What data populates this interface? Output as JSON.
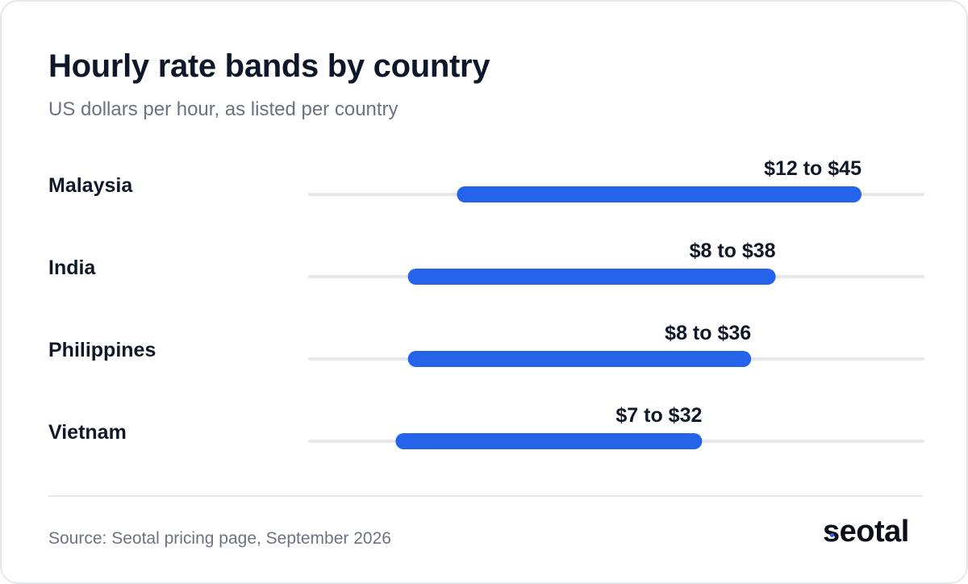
{
  "header": {
    "title": "Hourly rate bands by country",
    "subtitle": "US dollars per hour, as listed per country"
  },
  "footer": {
    "source": "Source: Seotal pricing page, September 2026",
    "logo_text": "seotal"
  },
  "colors": {
    "bar": "#2563eb",
    "track": "#e5e7eb",
    "logo_accent": "#2563eb"
  },
  "chart_data": {
    "type": "bar",
    "orientation": "horizontal-range",
    "title": "Hourly rate bands by country",
    "subtitle": "US dollars per hour, as listed per country",
    "xlabel": "",
    "ylabel": "",
    "grid": false,
    "legend": "none",
    "xlim": [
      0,
      50
    ],
    "categories": [
      "Malaysia",
      "India",
      "Philippines",
      "Vietnam"
    ],
    "ranges": [
      {
        "category": "Malaysia",
        "low": 12,
        "high": 45,
        "label": "$12 to $45"
      },
      {
        "category": "India",
        "low": 8,
        "high": 38,
        "label": "$8 to $38"
      },
      {
        "category": "Philippines",
        "low": 8,
        "high": 36,
        "label": "$8 to $36"
      },
      {
        "category": "Vietnam",
        "low": 7,
        "high": 32,
        "label": "$7 to $32"
      }
    ]
  }
}
